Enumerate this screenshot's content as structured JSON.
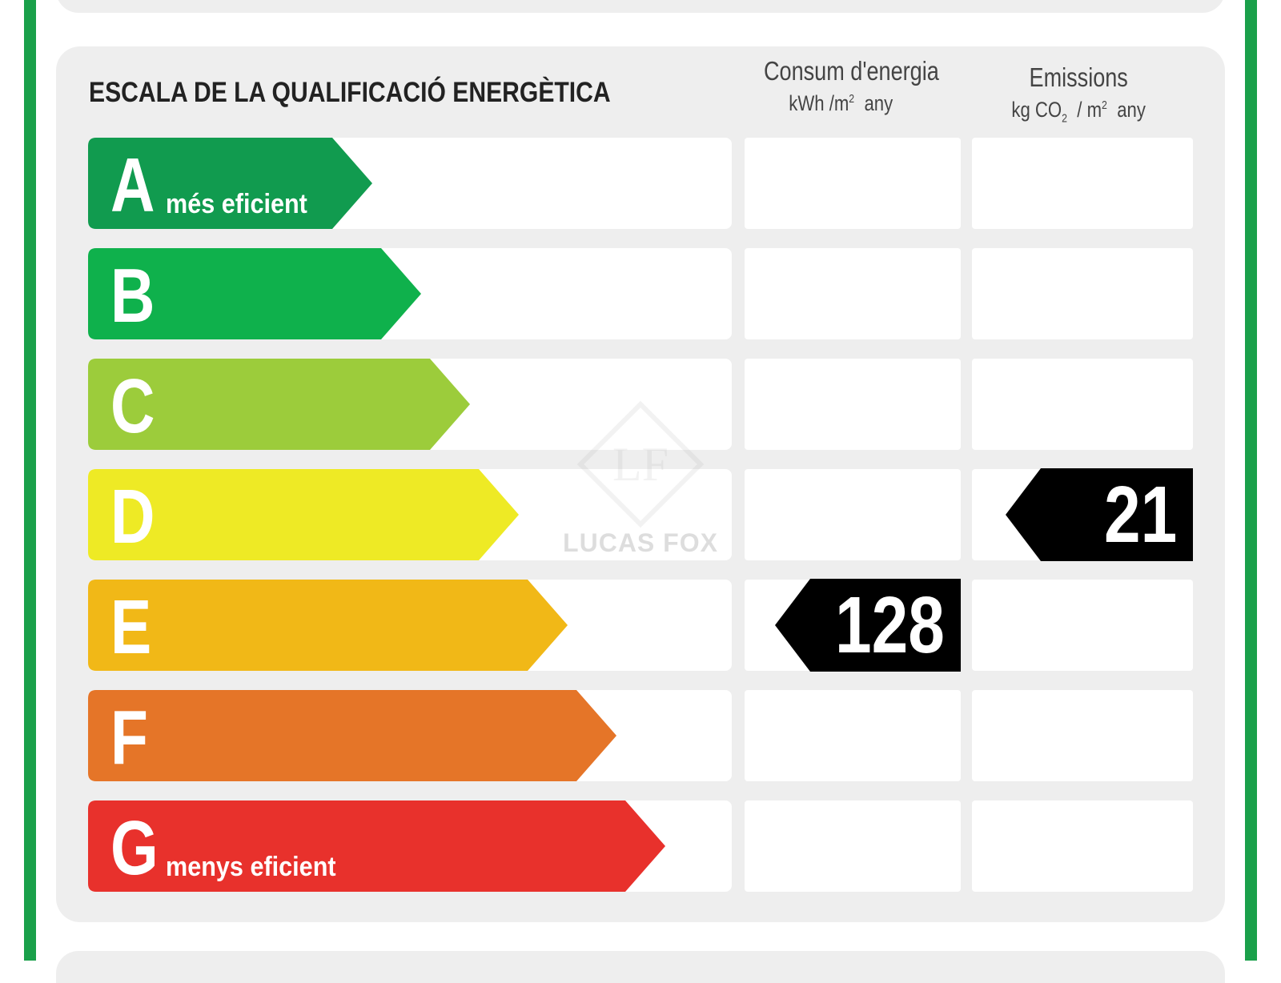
{
  "title": "ESCALA DE LA QUALIFICACIÓ ENERGÈTICA",
  "columns": {
    "energy": {
      "label": "Consum d'energia",
      "unit_prefix": "kWh /m",
      "unit_sup": "2",
      "unit_suffix": "any"
    },
    "emissions": {
      "label": "Emissions",
      "unit_prefix": "kg CO",
      "unit_sub": "2",
      "unit_mid": "/ m",
      "unit_sup": "2",
      "unit_suffix": "any"
    }
  },
  "scale": [
    {
      "letter": "A",
      "color": "#119b4f",
      "note": "més eficient"
    },
    {
      "letter": "B",
      "color": "#0fb14c",
      "note": ""
    },
    {
      "letter": "C",
      "color": "#9ccc3b",
      "note": ""
    },
    {
      "letter": "D",
      "color": "#eeea25",
      "note": ""
    },
    {
      "letter": "E",
      "color": "#f1b817",
      "note": ""
    },
    {
      "letter": "F",
      "color": "#e57528",
      "note": ""
    },
    {
      "letter": "G",
      "color": "#e8312c",
      "note": "menys eficient"
    }
  ],
  "ratings": {
    "energy": {
      "value": "128",
      "class": "E"
    },
    "emissions": {
      "value": "21",
      "class": "D"
    }
  },
  "watermark": {
    "text": "LUCAS FOX"
  },
  "colors": {
    "frame": "#1aa04a",
    "panel": "#eeeeee",
    "pointer": "#000000"
  }
}
